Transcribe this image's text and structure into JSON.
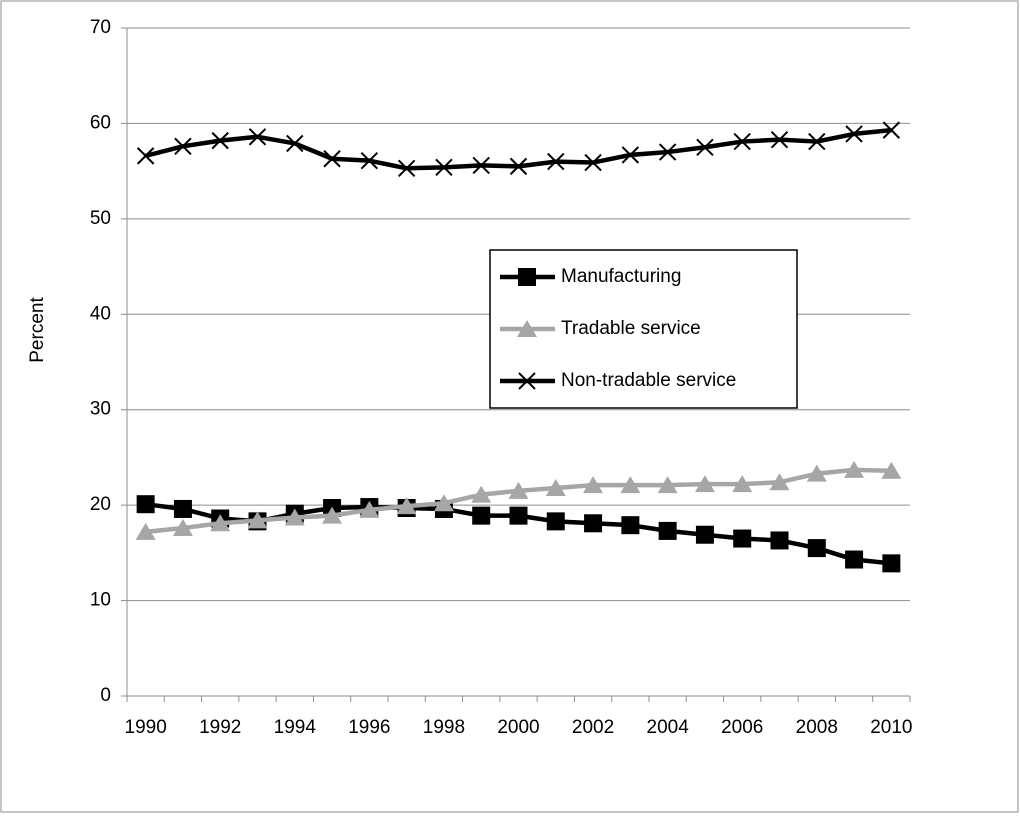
{
  "chart_data": {
    "type": "line",
    "y_label": "Percent",
    "categories": [
      "1990",
      null,
      "1992",
      null,
      "1994",
      null,
      "1996",
      null,
      "1998",
      null,
      "2000",
      null,
      "2002",
      null,
      "2004",
      null,
      "2006",
      null,
      "2008",
      null,
      "2010"
    ],
    "series": [
      {
        "name": "Manufacturing",
        "color": "#000000",
        "marker": "square",
        "values": [
          20.1,
          19.6,
          18.6,
          18.3,
          19.1,
          19.7,
          19.8,
          19.7,
          19.6,
          18.9,
          18.9,
          18.3,
          18.1,
          17.9,
          17.3,
          16.9,
          16.5,
          16.3,
          15.5,
          14.3,
          13.9
        ]
      },
      {
        "name": "Tradable service",
        "color": "#a6a6a6",
        "marker": "triangle",
        "values": [
          17.2,
          17.6,
          18.1,
          18.4,
          18.7,
          18.9,
          19.5,
          19.9,
          20.2,
          21.1,
          21.5,
          21.8,
          22.1,
          22.1,
          22.1,
          22.2,
          22.2,
          22.4,
          23.3,
          23.7,
          23.6
        ]
      },
      {
        "name": "Non-tradable service",
        "color": "#000000",
        "marker": "x",
        "values": [
          56.6,
          57.6,
          58.2,
          58.6,
          57.9,
          56.3,
          56.1,
          55.3,
          55.4,
          55.6,
          55.5,
          56.0,
          55.9,
          56.7,
          57.0,
          57.5,
          58.1,
          58.3,
          58.1,
          58.9,
          59.3
        ]
      }
    ],
    "ylim": [
      0,
      70
    ],
    "yticks": [
      0,
      10,
      20,
      30,
      40,
      50,
      60,
      70
    ],
    "grid": true
  }
}
